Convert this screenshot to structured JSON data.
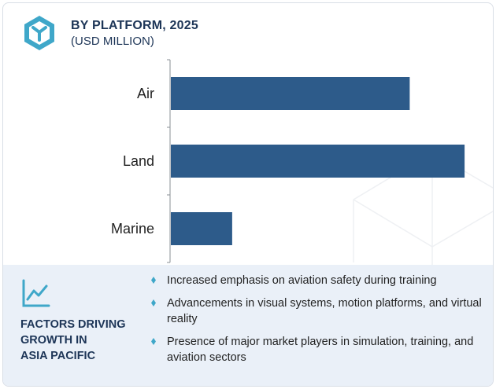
{
  "header": {
    "title": "BY PLATFORM, 2025",
    "subtitle": "(USD MILLION)"
  },
  "colors": {
    "bar": "#2d5b8a",
    "accent": "#3fa7c9",
    "heading": "#1d3557",
    "panel_bg": "#eaf0f8"
  },
  "icons": {
    "logo": "hexagon-logo-icon",
    "panel": "line-chart-trend-icon",
    "bullet": "diamond-bullet-icon"
  },
  "chart_data": {
    "type": "bar",
    "orientation": "horizontal",
    "categories": [
      "Air",
      "Land",
      "Marine"
    ],
    "values": [
      74,
      91,
      19
    ],
    "title": "BY PLATFORM, 2025",
    "subtitle": "(USD MILLION)",
    "xlim": [
      0,
      100
    ],
    "grid": false,
    "legend": "none"
  },
  "panel": {
    "title_lines": [
      "FACTORS DRIVING",
      "GROWTH IN",
      "ASIA PACIFIC"
    ],
    "bullets": [
      "Increased emphasis on aviation safety during training",
      "Advancements in visual systems, motion platforms, and virtual reality",
      "Presence of major market players in simulation, training, and aviation sectors"
    ]
  }
}
